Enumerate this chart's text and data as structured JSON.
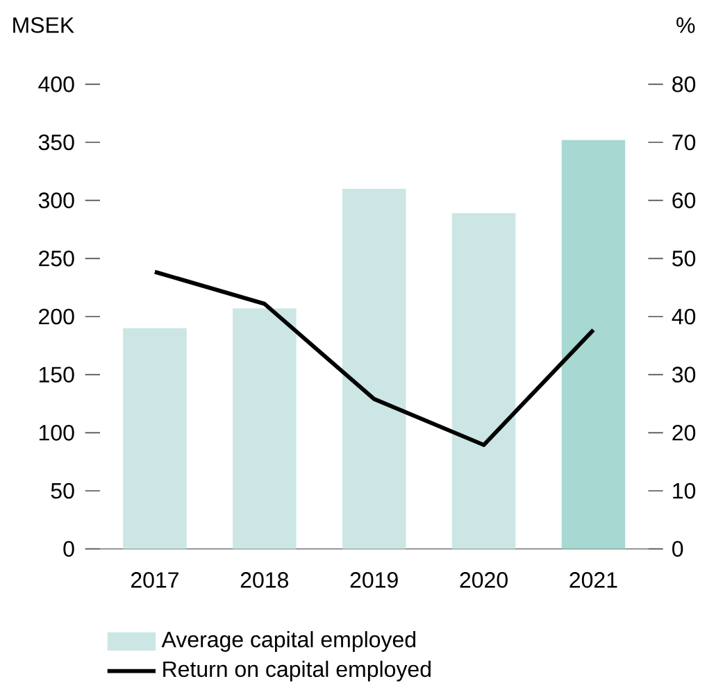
{
  "chart_data": {
    "type": "bar",
    "ylabel": "MSEK",
    "y2label": "%",
    "categories": [
      "2017",
      "2018",
      "2019",
      "2020",
      "2021"
    ],
    "series": [
      {
        "name": "Average capital employed",
        "colors": [
          "#cbe6e5",
          "#cbe6e5",
          "#cbe6e5",
          "#cbe6e5",
          "#a7d8d2"
        ],
        "values": [
          190,
          207,
          310,
          289,
          352
        ]
      },
      {
        "name": "Return on capital employed",
        "type": "line",
        "axis": "y2",
        "color": "#000000",
        "values": [
          47.7,
          42.2,
          25.8,
          17.9,
          37.7
        ]
      }
    ],
    "ylim": [
      0,
      400
    ],
    "yticks": [
      0,
      50,
      100,
      150,
      200,
      250,
      300,
      350,
      400
    ],
    "y2lim": [
      0,
      80
    ],
    "y2ticks": [
      0,
      10,
      20,
      30,
      40,
      50,
      60,
      70,
      80
    ],
    "legend": "bottom",
    "marker": "none",
    "line_style": "solid"
  }
}
